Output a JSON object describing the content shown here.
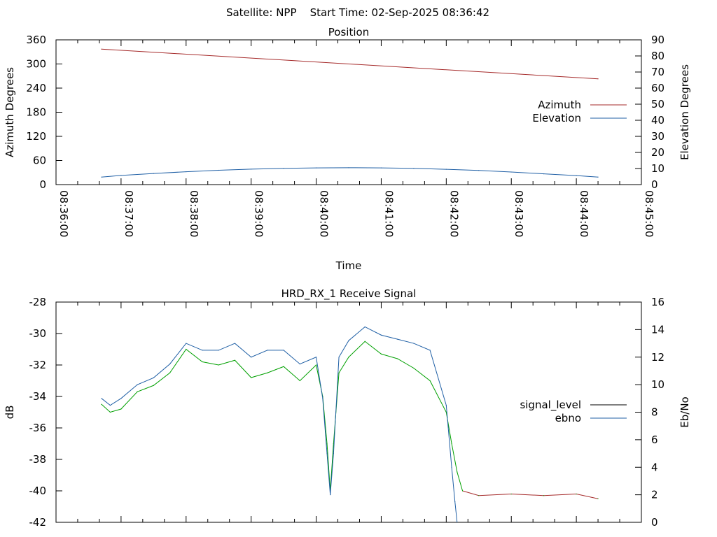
{
  "page": {
    "title": "Satellite: NPP    Start Time: 02-Sep-2025 08:36:42"
  },
  "chart_data": [
    {
      "id": "position",
      "type": "line",
      "title": "Position",
      "xlabel": "Time",
      "ylabel": "Azimuth Degrees",
      "y2label": "Elevation Degrees",
      "xlim": [
        "08:36:00",
        "08:45:00"
      ],
      "ylim": [
        0,
        360
      ],
      "y2lim": [
        0,
        90
      ],
      "x_ticks": [
        "08:36:00",
        "08:37:00",
        "08:38:00",
        "08:39:00",
        "08:40:00",
        "08:41:00",
        "08:42:00",
        "08:43:00",
        "08:44:00",
        "08:45:00"
      ],
      "y_ticks": [
        "0",
        "60",
        "120",
        "180",
        "240",
        "300",
        "360"
      ],
      "y2_ticks": [
        "0",
        "10",
        "20",
        "30",
        "40",
        "50",
        "60",
        "70",
        "80",
        "90"
      ],
      "grid": false,
      "legend_position": "right",
      "series": [
        {
          "name": "Azimuth",
          "axis": "y",
          "color": "#a52a2a",
          "x": [
            "08:36:42",
            "08:44:20"
          ],
          "values": [
            337,
            263
          ]
        },
        {
          "name": "Elevation",
          "axis": "y2",
          "color": "#1f5fa5",
          "x": [
            "08:36:42",
            "08:37:00",
            "08:37:30",
            "08:38:00",
            "08:38:30",
            "08:39:00",
            "08:39:30",
            "08:40:00",
            "08:40:30",
            "08:41:00",
            "08:41:30",
            "08:42:00",
            "08:42:30",
            "08:43:00",
            "08:43:30",
            "08:44:00",
            "08:44:20"
          ],
          "values": [
            4.7,
            5.7,
            6.9,
            8.0,
            8.9,
            9.6,
            10.1,
            10.4,
            10.5,
            10.4,
            10.1,
            9.5,
            8.8,
            7.8,
            6.7,
            5.6,
            4.7
          ]
        }
      ]
    },
    {
      "id": "receive-signal",
      "type": "line",
      "title": "HRD_RX_1 Receive Signal",
      "ylabel": "dB",
      "y2label": "Eb/No",
      "xlim": [
        "08:36:00",
        "08:45:00"
      ],
      "ylim": [
        -42,
        -28
      ],
      "y2lim": [
        0,
        16
      ],
      "y_ticks": [
        "-28",
        "-30",
        "-32",
        "-34",
        "-36",
        "-38",
        "-40",
        "-42"
      ],
      "y2_ticks": [
        "0",
        "2",
        "4",
        "6",
        "8",
        "10",
        "12",
        "14",
        "16"
      ],
      "grid": false,
      "legend_position": "right",
      "series": [
        {
          "name": "signal_level",
          "axis": "y",
          "color": "#00a000",
          "color_late": "#a52a2a",
          "x": [
            "08:36:42",
            "08:36:50",
            "08:37:00",
            "08:37:15",
            "08:37:30",
            "08:37:45",
            "08:38:00",
            "08:38:15",
            "08:38:30",
            "08:38:45",
            "08:39:00",
            "08:39:15",
            "08:39:30",
            "08:39:45",
            "08:40:00",
            "08:40:06",
            "08:40:10",
            "08:40:13",
            "08:40:16",
            "08:40:21",
            "08:40:30",
            "08:40:45",
            "08:41:00",
            "08:41:15",
            "08:41:30",
            "08:41:45",
            "08:42:00",
            "08:42:05",
            "08:42:10",
            "08:42:15",
            "08:42:30",
            "08:43:00",
            "08:43:30",
            "08:44:00",
            "08:44:20"
          ],
          "values": [
            -34.5,
            -35.0,
            -34.8,
            -33.7,
            -33.3,
            -32.5,
            -31.0,
            -31.8,
            -32.0,
            -31.7,
            -32.8,
            -32.5,
            -32.1,
            -33.0,
            -32.0,
            -34.0,
            -37.0,
            -40.0,
            -37.0,
            -32.5,
            -31.5,
            -30.5,
            -31.3,
            -31.6,
            -32.2,
            -33.0,
            -35.0,
            -37.0,
            -38.8,
            -40.0,
            -40.3,
            -40.2,
            -40.3,
            -40.2,
            -40.5
          ]
        },
        {
          "name": "ebno",
          "axis": "y2",
          "color": "#1f5fa5",
          "x": [
            "08:36:42",
            "08:36:50",
            "08:37:00",
            "08:37:15",
            "08:37:30",
            "08:37:45",
            "08:38:00",
            "08:38:15",
            "08:38:30",
            "08:38:45",
            "08:39:00",
            "08:39:15",
            "08:39:30",
            "08:39:45",
            "08:40:00",
            "08:40:06",
            "08:40:10",
            "08:40:13",
            "08:40:16",
            "08:40:21",
            "08:40:30",
            "08:40:45",
            "08:41:00",
            "08:41:15",
            "08:41:30",
            "08:41:45",
            "08:42:00",
            "08:42:05",
            "08:42:08",
            "08:42:10"
          ],
          "values": [
            9.0,
            8.5,
            9.0,
            10.0,
            10.5,
            11.5,
            13.0,
            12.5,
            12.5,
            13.0,
            12.0,
            12.5,
            12.5,
            11.5,
            12.0,
            9.0,
            5.0,
            2.0,
            5.0,
            12.0,
            13.2,
            14.2,
            13.6,
            13.3,
            13.0,
            12.5,
            8.5,
            4.0,
            1.5,
            0.0
          ]
        }
      ]
    }
  ]
}
